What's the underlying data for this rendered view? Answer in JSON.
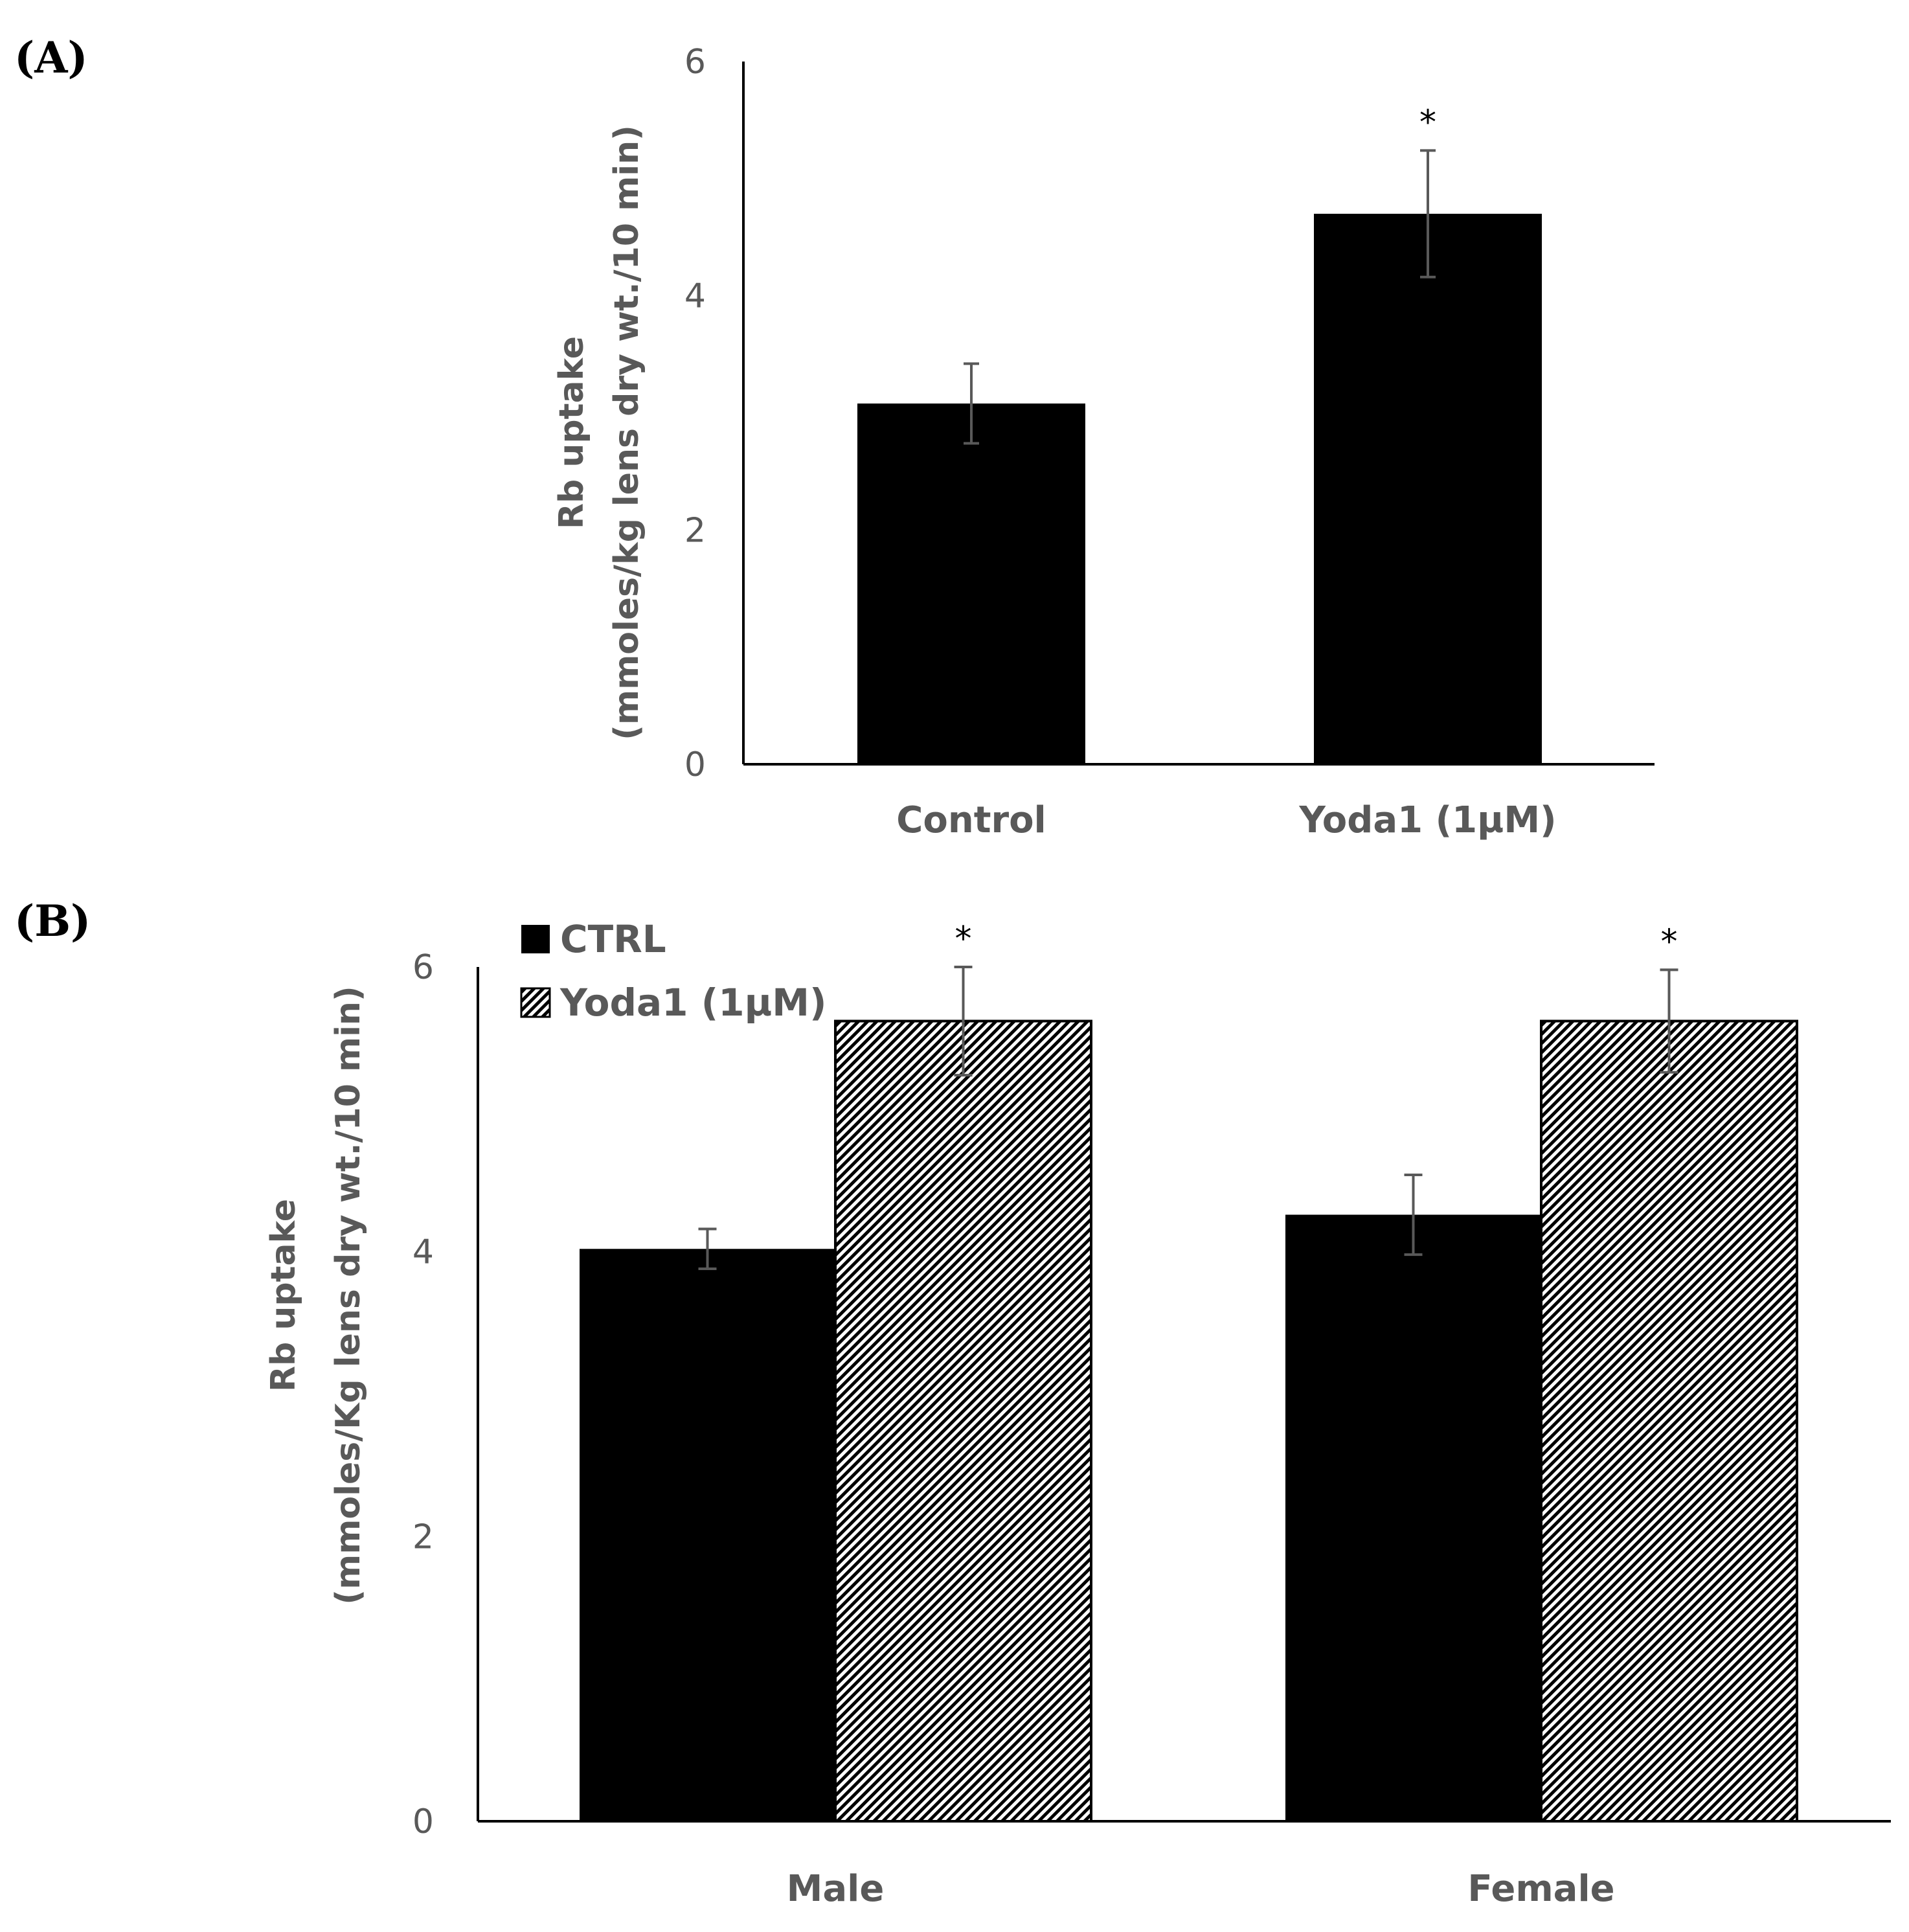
{
  "panels": [
    {
      "label": "(A)",
      "chart_data": {
        "type": "bar",
        "title": "",
        "xlabel": "",
        "ylabel_lines": [
          "Rb uptake",
          "(mmoles/kg lens dry wt./10 min)"
        ],
        "ylim": [
          0,
          6
        ],
        "yticks": [
          0,
          2,
          4,
          6
        ],
        "categories": [
          "Control",
          "Yoda1 (1µM)"
        ],
        "series": [
          {
            "name": "",
            "values": [
              3.08,
              4.7
            ],
            "errors": [
              0.34,
              0.54
            ],
            "pattern": "solid",
            "significance": [
              "",
              "*"
            ]
          }
        ],
        "legend": false
      }
    },
    {
      "label": "(B)",
      "chart_data": {
        "type": "bar",
        "title": "",
        "xlabel": "",
        "ylabel_lines": [
          "Rb uptake",
          "(mmoles/Kg lens dry wt./10 min)"
        ],
        "ylim": [
          0,
          6
        ],
        "yticks": [
          0,
          2,
          4,
          6
        ],
        "categories": [
          "Male",
          "Female"
        ],
        "series": [
          {
            "name": "CTRL",
            "values": [
              4.02,
              4.26
            ],
            "errors": [
              0.14,
              0.28
            ],
            "pattern": "solid",
            "significance": [
              "",
              ""
            ]
          },
          {
            "name": "Yoda1 (1µM)",
            "values": [
              5.62,
              5.62
            ],
            "errors": [
              0.38,
              0.36
            ],
            "pattern": "hatched",
            "significance": [
              "*",
              "*"
            ]
          }
        ],
        "legend": true,
        "legend_position": "top-left"
      }
    }
  ],
  "colors": {
    "bar": "#000000",
    "axis": "#000000",
    "text": "#595959",
    "hatch_bg": "#ffffff"
  }
}
